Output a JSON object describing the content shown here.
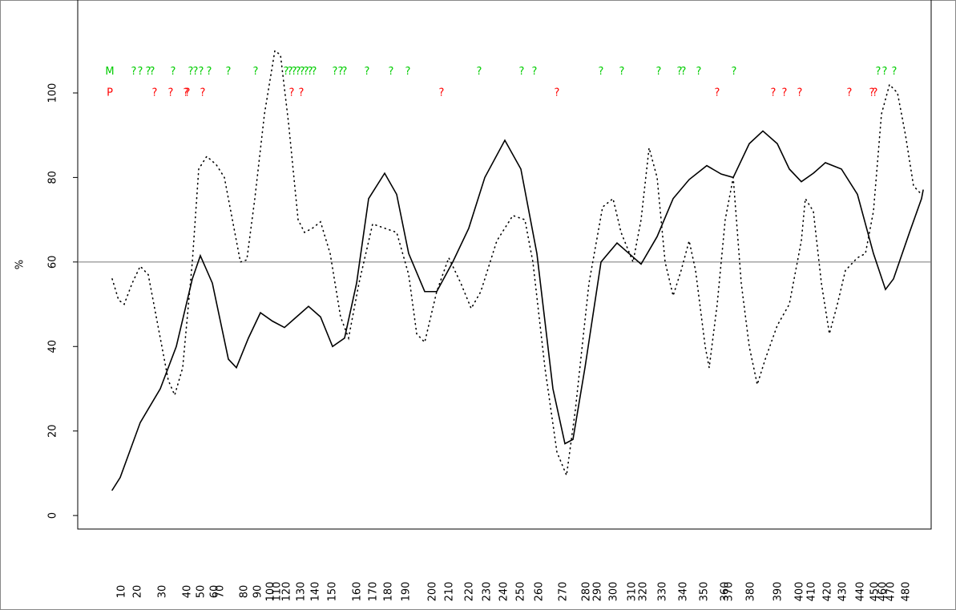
{
  "chart_data": {
    "type": "line",
    "y_label": "%",
    "xlim": [
      0,
      1065
    ],
    "ylim": [
      -3.2,
      122
    ],
    "yticks": [
      0,
      20,
      40,
      60,
      80,
      100
    ],
    "xticks": [
      {
        "value": 55,
        "label": "10"
      },
      {
        "value": 75,
        "label": "20"
      },
      {
        "value": 106,
        "label": "30"
      },
      {
        "value": 137,
        "label": "40"
      },
      {
        "value": 154,
        "label": "50"
      },
      {
        "value": 171,
        "label": "60"
      },
      {
        "value": 178,
        "label": "70"
      },
      {
        "value": 208,
        "label": "80"
      },
      {
        "value": 225,
        "label": "90"
      },
      {
        "value": 241,
        "label": "100"
      },
      {
        "value": 249,
        "label": "110"
      },
      {
        "value": 261,
        "label": "120"
      },
      {
        "value": 279,
        "label": "130"
      },
      {
        "value": 297,
        "label": "140"
      },
      {
        "value": 318,
        "label": "150"
      },
      {
        "value": 349,
        "label": "160"
      },
      {
        "value": 369,
        "label": "170"
      },
      {
        "value": 388,
        "label": "180"
      },
      {
        "value": 410,
        "label": "190"
      },
      {
        "value": 443,
        "label": "200"
      },
      {
        "value": 464,
        "label": "210"
      },
      {
        "value": 489,
        "label": "220"
      },
      {
        "value": 511,
        "label": "230"
      },
      {
        "value": 532,
        "label": "240"
      },
      {
        "value": 553,
        "label": "250"
      },
      {
        "value": 576,
        "label": "260"
      },
      {
        "value": 606,
        "label": "270"
      },
      {
        "value": 635,
        "label": "280"
      },
      {
        "value": 649,
        "label": "290"
      },
      {
        "value": 669,
        "label": "300"
      },
      {
        "value": 692,
        "label": "310"
      },
      {
        "value": 706,
        "label": "320"
      },
      {
        "value": 730,
        "label": "330"
      },
      {
        "value": 756,
        "label": "340"
      },
      {
        "value": 782,
        "label": "350"
      },
      {
        "value": 808,
        "label": "360"
      },
      {
        "value": 813,
        "label": "370"
      },
      {
        "value": 840,
        "label": "380"
      },
      {
        "value": 874,
        "label": "390"
      },
      {
        "value": 901,
        "label": "400"
      },
      {
        "value": 916,
        "label": "410"
      },
      {
        "value": 936,
        "label": "420"
      },
      {
        "value": 955,
        "label": "430"
      },
      {
        "value": 977,
        "label": "440"
      },
      {
        "value": 995,
        "label": "450"
      },
      {
        "value": 1005,
        "label": "460"
      },
      {
        "value": 1015,
        "label": "470"
      },
      {
        "value": 1034,
        "label": "480"
      }
    ],
    "hline": 60,
    "series": [
      {
        "color": "#000000",
        "dash": false,
        "x": [
          43,
          53,
          78,
          103,
          123,
          143,
          153,
          168,
          188,
          198,
          213,
          228,
          243,
          258,
          273,
          288,
          303,
          318,
          333,
          348,
          363,
          383,
          398,
          413,
          433,
          448,
          468,
          488,
          508,
          533,
          553,
          573,
          593,
          608,
          618,
          633,
          653,
          673,
          688,
          703,
          723,
          743,
          763,
          785,
          803,
          818,
          838,
          855,
          873,
          888,
          903,
          918,
          933,
          953,
          973,
          993,
          1008,
          1018,
          1038,
          1053,
          1055
        ],
        "values": [
          6,
          9,
          22,
          30,
          40,
          56,
          61.5,
          55,
          37,
          35,
          42,
          48,
          46,
          44.5,
          47,
          49.5,
          47,
          40,
          42,
          55,
          75,
          81,
          76,
          62,
          53,
          53,
          60,
          68,
          80,
          88.8,
          82,
          62,
          30,
          17,
          18,
          35,
          60,
          64.5,
          62,
          59.5,
          66,
          75,
          79.5,
          82.8,
          80.8,
          80,
          88,
          91,
          88,
          82,
          79,
          81,
          83.5,
          82,
          76,
          62,
          53.5,
          56,
          67,
          75,
          77
        ]
      },
      {
        "color": "#000000",
        "dash": true,
        "x": [
          43,
          51,
          58,
          68,
          78,
          88,
          98,
          113,
          121,
          131,
          143,
          151,
          161,
          173,
          183,
          193,
          203,
          211,
          221,
          233,
          246,
          253,
          263,
          275,
          283,
          293,
          303,
          315,
          328,
          338,
          351,
          368,
          383,
          398,
          413,
          423,
          433,
          448,
          463,
          478,
          491,
          503,
          523,
          543,
          558,
          568,
          583,
          598,
          610,
          621,
          638,
          655,
          668,
          678,
          693,
          703,
          713,
          723,
          733,
          743,
          753,
          763,
          771,
          783,
          788,
          798,
          808,
          818,
          828,
          838,
          848,
          858,
          873,
          888,
          903,
          908,
          918,
          928,
          938,
          948,
          958,
          973,
          983,
          993,
          1003,
          1013,
          1023,
          1033,
          1043,
          1053
        ],
        "values": [
          56,
          51,
          50,
          55,
          59,
          57,
          47,
          32,
          28.5,
          35,
          60,
          82,
          85,
          83,
          80,
          70,
          60,
          60.5,
          75,
          95,
          110,
          109,
          93,
          70,
          67,
          68,
          69.5,
          62,
          47,
          42,
          55,
          69,
          68,
          67,
          57,
          43,
          41,
          53,
          61,
          55,
          49,
          53,
          65,
          71,
          70,
          60,
          35,
          15,
          9.5,
          25,
          55,
          73,
          75,
          67,
          60,
          70,
          87,
          80,
          60,
          52,
          58,
          65,
          58,
          40,
          35,
          50,
          70,
          80,
          55,
          40,
          31,
          37,
          45,
          50,
          65,
          75,
          72,
          55,
          43,
          50,
          58,
          61,
          62,
          72,
          95,
          102,
          100,
          90,
          78,
          76
        ]
      }
    ],
    "marker_rows": [
      {
        "label": "M",
        "color": "#00cc00",
        "symbol": "?",
        "level": 105,
        "x": [
          70,
          78,
          88,
          93,
          119,
          141,
          147,
          154,
          164,
          188,
          222,
          260,
          265,
          270,
          275,
          280,
          285,
          290,
          295,
          321,
          328,
          333,
          361,
          391,
          412,
          501,
          554,
          570,
          653,
          679,
          725,
          751,
          756,
          775,
          819,
          999,
          1007,
          1019
        ]
      },
      {
        "label": "P",
        "color": "#ff0000",
        "symbol": "?",
        "level": 100,
        "x": [
          96,
          116,
          135,
          137,
          156,
          267,
          279,
          454,
          598,
          798,
          868,
          882,
          901,
          963,
          991,
          995
        ]
      }
    ]
  }
}
